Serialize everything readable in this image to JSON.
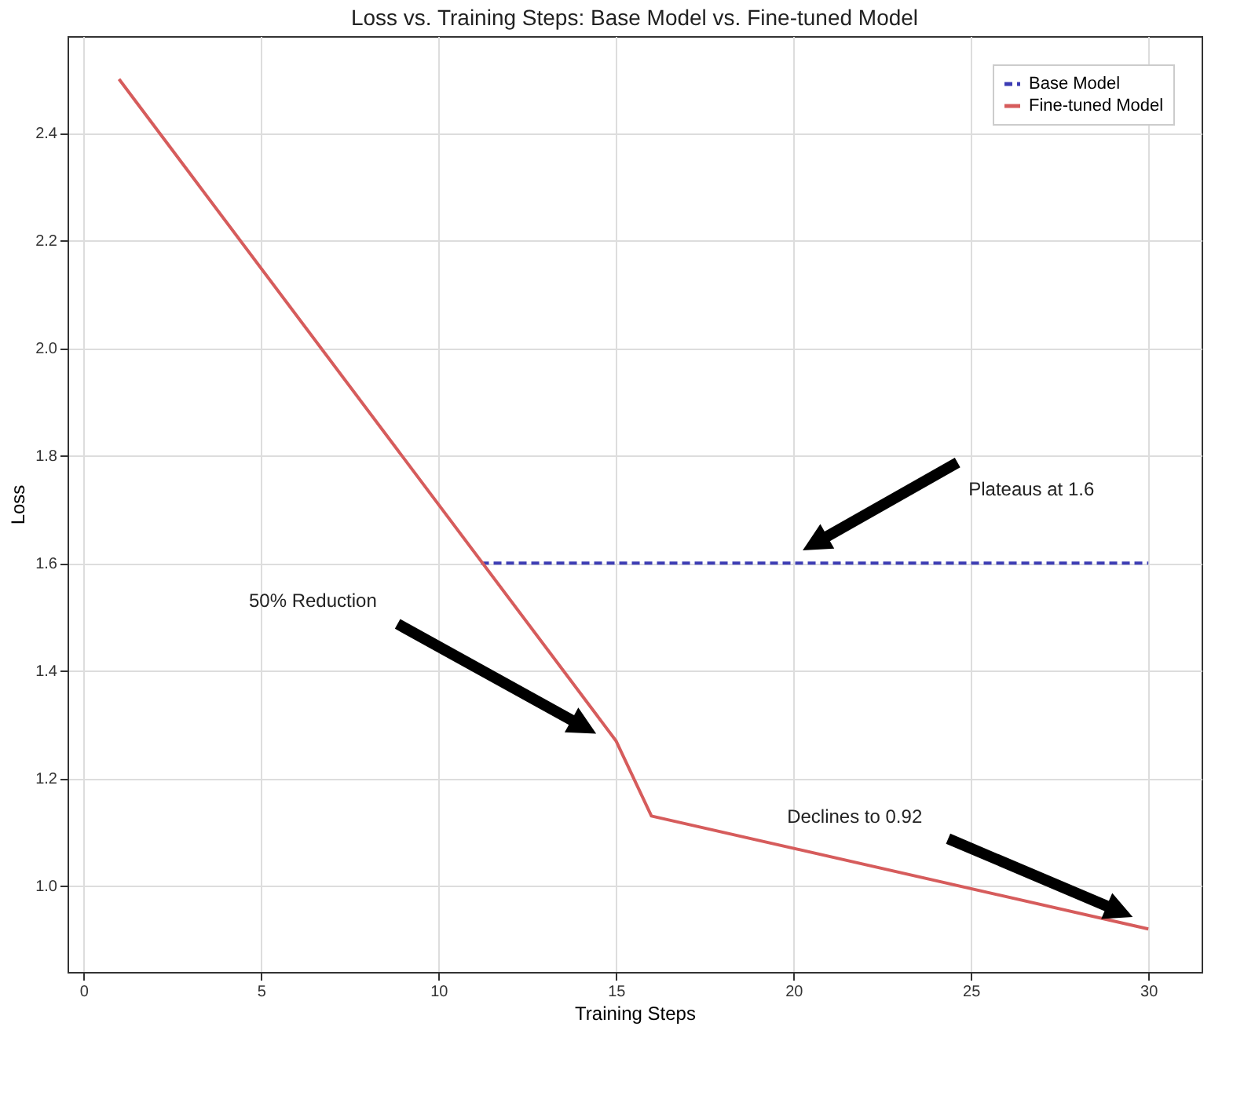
{
  "chart_data": {
    "type": "line",
    "title": "Loss vs. Training Steps: Base Model vs. Fine-tuned Model",
    "xlabel": "Training Steps",
    "ylabel": "Loss",
    "series": [
      {
        "name": "Base Model",
        "color": "#3c3cb4",
        "line_style": "dashed",
        "x": [
          11.2,
          30
        ],
        "values": [
          1.6,
          1.6
        ]
      },
      {
        "name": "Fine-tuned Model",
        "color": "#d65c5c",
        "line_style": "solid",
        "x": [
          1,
          15,
          16,
          30
        ],
        "values": [
          2.5,
          1.27,
          1.13,
          0.92
        ]
      }
    ],
    "xlim": [
      -0.45,
      31.5
    ],
    "ylim": [
      0.84,
      2.58
    ],
    "xticks": [
      0,
      5,
      10,
      15,
      20,
      25,
      30
    ],
    "yticks": [
      {
        "value": 1,
        "label": "1.0"
      },
      1.2,
      1.4,
      1.6,
      1.8,
      {
        "value": 2,
        "label": "2.0"
      },
      2.2,
      2.4
    ],
    "grid": true,
    "legend": "top right",
    "marker": "none",
    "annotations": [
      "Plateaus at 1.6",
      "50% Reduction",
      "Declines to 0.92"
    ]
  }
}
